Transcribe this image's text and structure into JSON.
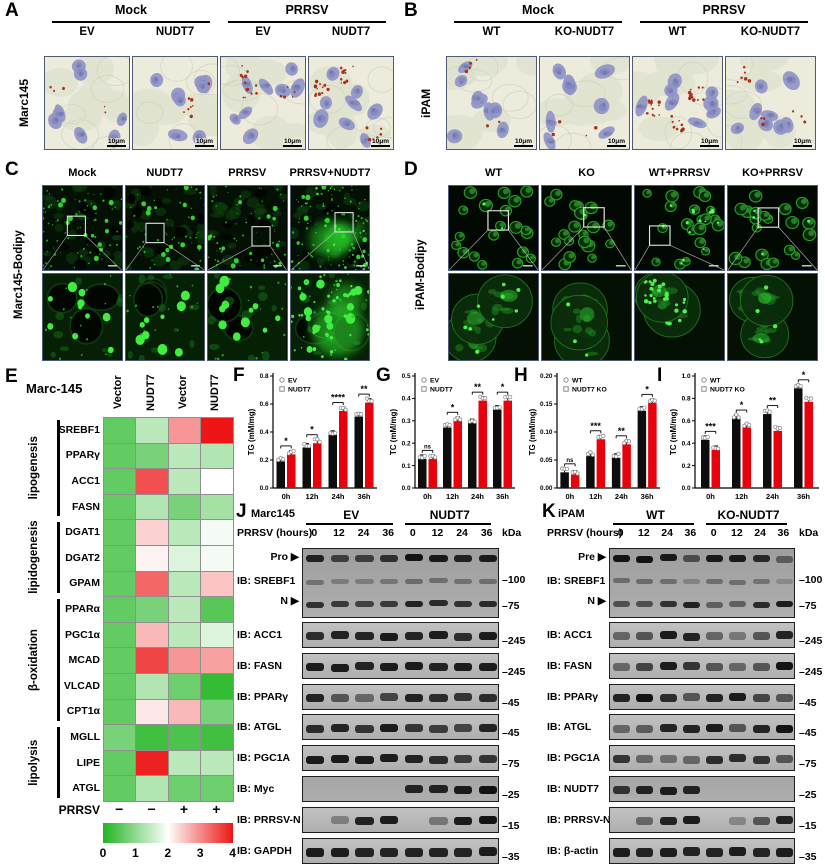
{
  "panel_a": {
    "letter": "A",
    "row_label": "Marc145",
    "scale_bar": "10μm",
    "groups": [
      {
        "label": "Mock",
        "cols": [
          "EV",
          "NUDT7"
        ]
      },
      {
        "label": "PRRSV",
        "cols": [
          "EV",
          "NUDT7"
        ]
      }
    ]
  },
  "panel_b": {
    "letter": "B",
    "row_label": "iPAM",
    "scale_bar": "10μm",
    "groups": [
      {
        "label": "Mock",
        "cols": [
          "WT",
          "KO-NUDT7"
        ]
      },
      {
        "label": "PRRSV",
        "cols": [
          "WT",
          "KO-NUDT7"
        ]
      }
    ]
  },
  "panel_c": {
    "letter": "C",
    "row_label": "Marc145-Bodipy",
    "cols": [
      "Mock",
      "NUDT7",
      "PRRSV",
      "PRRSV+NUDT7"
    ]
  },
  "panel_d": {
    "letter": "D",
    "row_label": "iPAM-Bodipy",
    "cols": [
      "WT",
      "KO",
      "WT+PRRSV",
      "KO+PRRSV"
    ]
  },
  "panel_e": {
    "letter": "E",
    "title": "Marc-145",
    "col_labels": [
      "Vector",
      "NUDT7",
      "Vector",
      "NUDT7"
    ],
    "row_groups": [
      {
        "name": "lipogenesis",
        "genes": [
          "SREBF1",
          "PPARγ",
          "ACC1",
          "FASN"
        ]
      },
      {
        "name": "lipidogenesis",
        "genes": [
          "DGAT1",
          "DGAT2",
          "GPAM"
        ]
      },
      {
        "name": "β-oxidation",
        "genes": [
          "PPARα",
          "PGC1α",
          "MCAD",
          "VLCAD",
          "CPT1α"
        ]
      },
      {
        "name": "lipolysis",
        "genes": [
          "MGLL",
          "LIPE",
          "ATGL"
        ]
      }
    ],
    "prrsv_label": "PRRSV",
    "prrsv_signs": [
      "−",
      "−",
      "+",
      "+"
    ],
    "colorbar_ticks": [
      "0",
      "1",
      "2",
      "3",
      "4"
    ]
  },
  "chart_data": [
    {
      "type": "heatmap",
      "panel": "E",
      "title": "Marc-145",
      "columns": [
        "Vector",
        "NUDT7",
        "Vector",
        "NUDT7"
      ],
      "prrsv": [
        "−",
        "−",
        "+",
        "+"
      ],
      "rows": [
        {
          "gene": "SREBF1",
          "group": "lipogenesis",
          "values": [
            0.6,
            1.4,
            2.9,
            4.0
          ]
        },
        {
          "gene": "PPARγ",
          "group": "lipogenesis",
          "values": [
            0.6,
            0.8,
            1.4,
            1.3
          ]
        },
        {
          "gene": "ACC1",
          "group": "lipogenesis",
          "values": [
            0.6,
            3.5,
            1.4,
            2.0
          ]
        },
        {
          "gene": "FASN",
          "group": "lipogenesis",
          "values": [
            0.6,
            1.3,
            0.8,
            1.2
          ]
        },
        {
          "gene": "DGAT1",
          "group": "lipidogenesis",
          "values": [
            0.6,
            2.4,
            1.4,
            1.9
          ]
        },
        {
          "gene": "DGAT2",
          "group": "lipidogenesis",
          "values": [
            0.6,
            2.1,
            1.7,
            1.9
          ]
        },
        {
          "gene": "GPAM",
          "group": "lipidogenesis",
          "values": [
            0.6,
            3.3,
            1.4,
            2.5
          ]
        },
        {
          "gene": "PPARα",
          "group": "β-oxidation",
          "values": [
            0.6,
            0.8,
            1.4,
            0.5
          ]
        },
        {
          "gene": "PGC1α",
          "group": "β-oxidation",
          "values": [
            0.6,
            2.6,
            1.4,
            1.7
          ]
        },
        {
          "gene": "MCAD",
          "group": "β-oxidation",
          "values": [
            0.6,
            3.6,
            2.9,
            2.8
          ]
        },
        {
          "gene": "VLCAD",
          "group": "β-oxidation",
          "values": [
            0.6,
            1.3,
            0.7,
            0.2
          ]
        },
        {
          "gene": "CPT1α",
          "group": "β-oxidation",
          "values": [
            0.6,
            2.2,
            2.6,
            0.8
          ]
        },
        {
          "gene": "MGLL",
          "group": "lipolysis",
          "values": [
            0.8,
            0.3,
            0.4,
            0.3
          ]
        },
        {
          "gene": "LIPE",
          "group": "lipolysis",
          "values": [
            0.6,
            3.9,
            1.4,
            1.4
          ]
        },
        {
          "gene": "ATGL",
          "group": "lipolysis",
          "values": [
            0.6,
            1.3,
            0.7,
            0.7
          ]
        }
      ],
      "scale": {
        "min": 0,
        "max": 4,
        "ticks": [
          0,
          1,
          2,
          3,
          4
        ],
        "green": "#1fb41f",
        "white": "#ffffff",
        "red": "#ed1515"
      }
    },
    {
      "type": "bar",
      "panel": "F",
      "ylabel": "TG (mM/mg)",
      "ylim": [
        0,
        0.8
      ],
      "yticks": [
        "0.0",
        "0.2",
        "0.4",
        "0.6",
        "0.8"
      ],
      "categories": [
        "0h",
        "12h",
        "24h",
        "36h"
      ],
      "series": [
        {
          "name": "EV",
          "marker": "circle",
          "color": "#0d0d0d",
          "values": [
            0.19,
            0.29,
            0.38,
            0.51
          ]
        },
        {
          "name": "NUDT7",
          "marker": "square",
          "color": "#e8000b",
          "values": [
            0.24,
            0.32,
            0.55,
            0.61
          ]
        }
      ],
      "sig": [
        "*",
        "*",
        "****",
        "**"
      ]
    },
    {
      "type": "bar",
      "panel": "G",
      "ylabel": "TC (mM/mg)",
      "ylim": [
        0,
        0.5
      ],
      "yticks": [
        "0.0",
        "0.1",
        "0.2",
        "0.3",
        "0.4",
        "0.5"
      ],
      "categories": [
        "0h",
        "12h",
        "24h",
        "36h"
      ],
      "series": [
        {
          "name": "EV",
          "marker": "circle",
          "color": "#0d0d0d",
          "values": [
            0.13,
            0.27,
            0.29,
            0.35
          ]
        },
        {
          "name": "NUDT7",
          "marker": "square",
          "color": "#e8000b",
          "values": [
            0.13,
            0.3,
            0.39,
            0.39
          ]
        }
      ],
      "sig": [
        "ns",
        "*",
        "**",
        "*"
      ]
    },
    {
      "type": "bar",
      "panel": "H",
      "ylabel": "TG (mM/mg)",
      "ylim": [
        0,
        0.2
      ],
      "yticks": [
        "0.00",
        "0.05",
        "0.10",
        "0.15",
        "0.20"
      ],
      "categories": [
        "0h",
        "12h",
        "24h",
        "36h"
      ],
      "series": [
        {
          "name": "WT",
          "marker": "circle",
          "color": "#0d0d0d",
          "values": [
            0.028,
            0.057,
            0.054,
            0.138
          ]
        },
        {
          "name": "NUDT7 KO",
          "marker": "square",
          "color": "#e8000b",
          "values": [
            0.024,
            0.087,
            0.078,
            0.152
          ]
        }
      ],
      "sig": [
        "ns",
        "***",
        "**",
        "*"
      ]
    },
    {
      "type": "bar",
      "panel": "I",
      "ylabel": "TC (mM/mg)",
      "ylim": [
        0,
        1.0
      ],
      "yticks": [
        "0.0",
        "0.2",
        "0.4",
        "0.6",
        "0.8",
        "1.0"
      ],
      "categories": [
        "0h",
        "12h",
        "24h",
        "36h"
      ],
      "series": [
        {
          "name": "WT",
          "marker": "circle",
          "color": "#0d0d0d",
          "values": [
            0.43,
            0.62,
            0.66,
            0.89
          ]
        },
        {
          "name": "NUDT7 KO",
          "marker": "square",
          "color": "#e8000b",
          "values": [
            0.34,
            0.54,
            0.51,
            0.77
          ]
        }
      ],
      "sig": [
        "***",
        "*",
        "**",
        "*"
      ]
    }
  ],
  "panel_j": {
    "letter": "J",
    "cell_line": "Marc145",
    "groups": [
      "EV",
      "NUDT7"
    ],
    "lane_header": "PRRSV (hours)",
    "hours": [
      "0",
      "12",
      "24",
      "36",
      "0",
      "12",
      "24",
      "36"
    ],
    "kda_label": "kDa",
    "srebf1": {
      "top_arrow": "Pro",
      "bottom_arrow": "N"
    },
    "blots": [
      {
        "label": "IB: SREBF1",
        "kda": [
          "100",
          "75"
        ],
        "tall": true,
        "bands_top": [
          0.9,
          0.7,
          0.7,
          0.8,
          1,
          0.95,
          0.9,
          0.95
        ],
        "bands_bottom": [
          0.8,
          0.75,
          0.7,
          0.75,
          0.9,
          0.85,
          0.8,
          0.85
        ]
      },
      {
        "label": "IB: ACC1",
        "kda": [
          "245"
        ],
        "bands": [
          0.85,
          0.9,
          0.9,
          0.95,
          0.9,
          0.95,
          0.85,
          0.95
        ]
      },
      {
        "label": "IB: FASN",
        "kda": [
          "245"
        ],
        "bands": [
          0.95,
          0.95,
          0.9,
          0.95,
          0.95,
          0.9,
          0.95,
          0.95
        ]
      },
      {
        "label": "IB: PPARγ",
        "kda": [
          "45"
        ],
        "bands": [
          0.9,
          0.6,
          0.5,
          0.7,
          0.9,
          0.85,
          0.8,
          0.85
        ]
      },
      {
        "label": "IB: ATGL",
        "kda": [
          "45"
        ],
        "bands": [
          0.85,
          0.9,
          0.8,
          0.95,
          0.8,
          0.75,
          0.7,
          0.9
        ]
      },
      {
        "label": "IB: PGC1A",
        "kda": [
          "75"
        ],
        "bands": [
          0.95,
          0.95,
          0.95,
          0.95,
          0.9,
          0.85,
          0.75,
          0.8
        ]
      },
      {
        "label": "IB: Myc",
        "kda": [
          "25"
        ],
        "uniform_bg": true,
        "bands": [
          0,
          0,
          0,
          0,
          0.9,
          0.9,
          0.95,
          1
        ]
      },
      {
        "label": "IB: PRRSV-N",
        "kda": [
          "15"
        ],
        "bands": [
          0,
          0.35,
          0.9,
          0.95,
          0,
          0.4,
          0.95,
          1
        ]
      },
      {
        "label": "IB: GAPDH",
        "kda": [
          "35"
        ],
        "bands": [
          0.95,
          0.95,
          0.9,
          0.9,
          0.9,
          0.9,
          0.9,
          0.95
        ]
      }
    ]
  },
  "panel_k": {
    "letter": "K",
    "cell_line": "iPAM",
    "groups": [
      "WT",
      "KO-NUDT7"
    ],
    "lane_header": "PRRSV (hours)",
    "hours": [
      "0",
      "12",
      "24",
      "36",
      "0",
      "12",
      "24",
      "36"
    ],
    "kda_label": "kDa",
    "srebf1": {
      "top_arrow": "Pre",
      "bottom_arrow": "N"
    },
    "blots": [
      {
        "label": "IB: SREBF1",
        "kda": [
          "100",
          "75"
        ],
        "tall": true,
        "bands_top": [
          1,
          1,
          0.95,
          0.6,
          0.95,
          0.95,
          0.85,
          0.5
        ],
        "bands_bottom": [
          0.6,
          0.6,
          0.8,
          0.9,
          0.5,
          0.5,
          0.85,
          0.95
        ]
      },
      {
        "label": "IB: ACC1",
        "kda": [
          "245"
        ],
        "bands": [
          0.5,
          0.6,
          0.95,
          0.9,
          0.5,
          0.4,
          0.6,
          0.9
        ]
      },
      {
        "label": "IB: FASN",
        "kda": [
          "245"
        ],
        "bands": [
          0.5,
          0.7,
          0.95,
          0.8,
          0.6,
          0.5,
          0.6,
          1
        ]
      },
      {
        "label": "IB: PPARγ",
        "kda": [
          "45"
        ],
        "bands": [
          0.9,
          1,
          0.85,
          0.6,
          0.9,
          0.95,
          0.7,
          0.6
        ]
      },
      {
        "label": "IB: ATGL",
        "kda": [
          "45"
        ],
        "bands": [
          0.5,
          0.55,
          0.9,
          0.9,
          0.95,
          0.6,
          0.9,
          1
        ]
      },
      {
        "label": "IB: PGC1A",
        "kda": [
          "75"
        ],
        "bands": [
          0.8,
          0.5,
          0.45,
          0.5,
          0.85,
          0.85,
          0.8,
          0.6
        ]
      },
      {
        "label": "IB: NUDT7",
        "kda": [
          "25"
        ],
        "uniform_bg": true,
        "bands": [
          0.8,
          0.9,
          0.95,
          0.9,
          0,
          0,
          0,
          0
        ]
      },
      {
        "label": "IB: PRRSV-N",
        "kda": [
          "15"
        ],
        "bands": [
          0,
          0.5,
          0.9,
          0.95,
          0,
          0.3,
          0.6,
          0.9
        ]
      },
      {
        "label": "IB: β-actin",
        "kda": [
          "35"
        ],
        "bands": [
          0.95,
          0.9,
          0.95,
          0.9,
          0.9,
          0.95,
          0.9,
          0.95
        ]
      }
    ]
  },
  "colors": {
    "bar_series1": "#0d0d0d",
    "bar_series2": "#e8000b",
    "heat_green": "#1fb41f",
    "heat_red": "#ed1515",
    "bodipy_green": "#35d435"
  }
}
